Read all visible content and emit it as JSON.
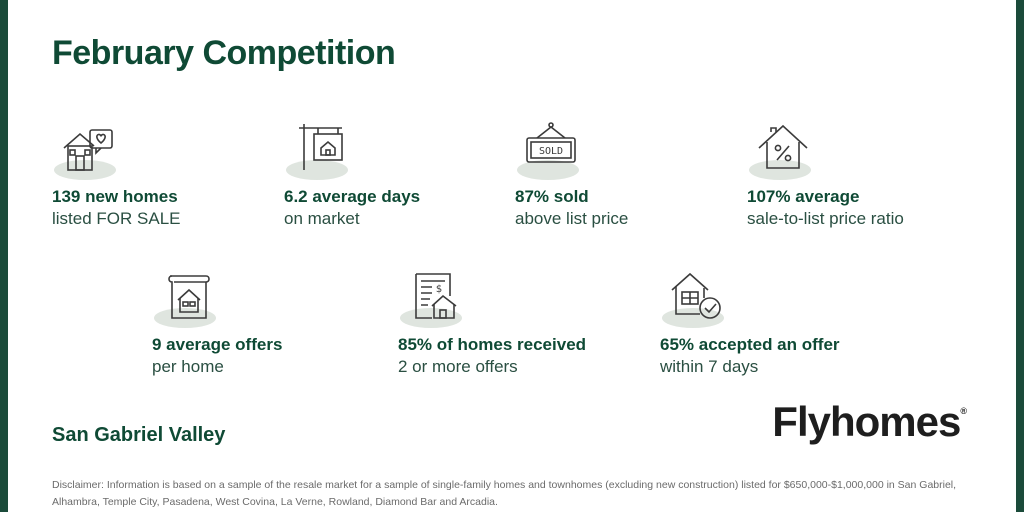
{
  "title": "February Competition",
  "stats_row1": [
    {
      "icon": "house-heart-icon",
      "bold": "139 new homes",
      "light": "listed FOR SALE"
    },
    {
      "icon": "sign-post-icon",
      "bold": "6.2 average days",
      "light": "on market"
    },
    {
      "icon": "sold-sign-icon",
      "bold": "87% sold",
      "light": "above list price"
    },
    {
      "icon": "house-percent-icon",
      "bold": "107% average",
      "light": "sale-to-list price ratio"
    }
  ],
  "stats_row2": [
    {
      "icon": "house-document-icon",
      "bold": "9  average offers",
      "light": "per home"
    },
    {
      "icon": "receipt-house-icon",
      "bold": "85% of homes received",
      "light": "2 or more offers"
    },
    {
      "icon": "house-check-icon",
      "bold": "65% accepted an offer",
      "light": "within 7 days"
    }
  ],
  "region": "San Gabriel Valley",
  "brand": {
    "name": "Flyhomes",
    "mark": "®"
  },
  "disclaimer": "Disclaimer: Information is based on a sample of the resale market for a sample of single-family homes and townhomes (excluding new construction) listed for $650,000-$1,000,000 in San Gabriel, Alhambra, Temple City, Pasadena, West Covina, La Verne, Rowland, Diamond Bar and Arcadia.",
  "colors": {
    "brand_green": "#0f4a35",
    "edge": "#1b4b3a",
    "icon_blob": "#dfe5df"
  }
}
